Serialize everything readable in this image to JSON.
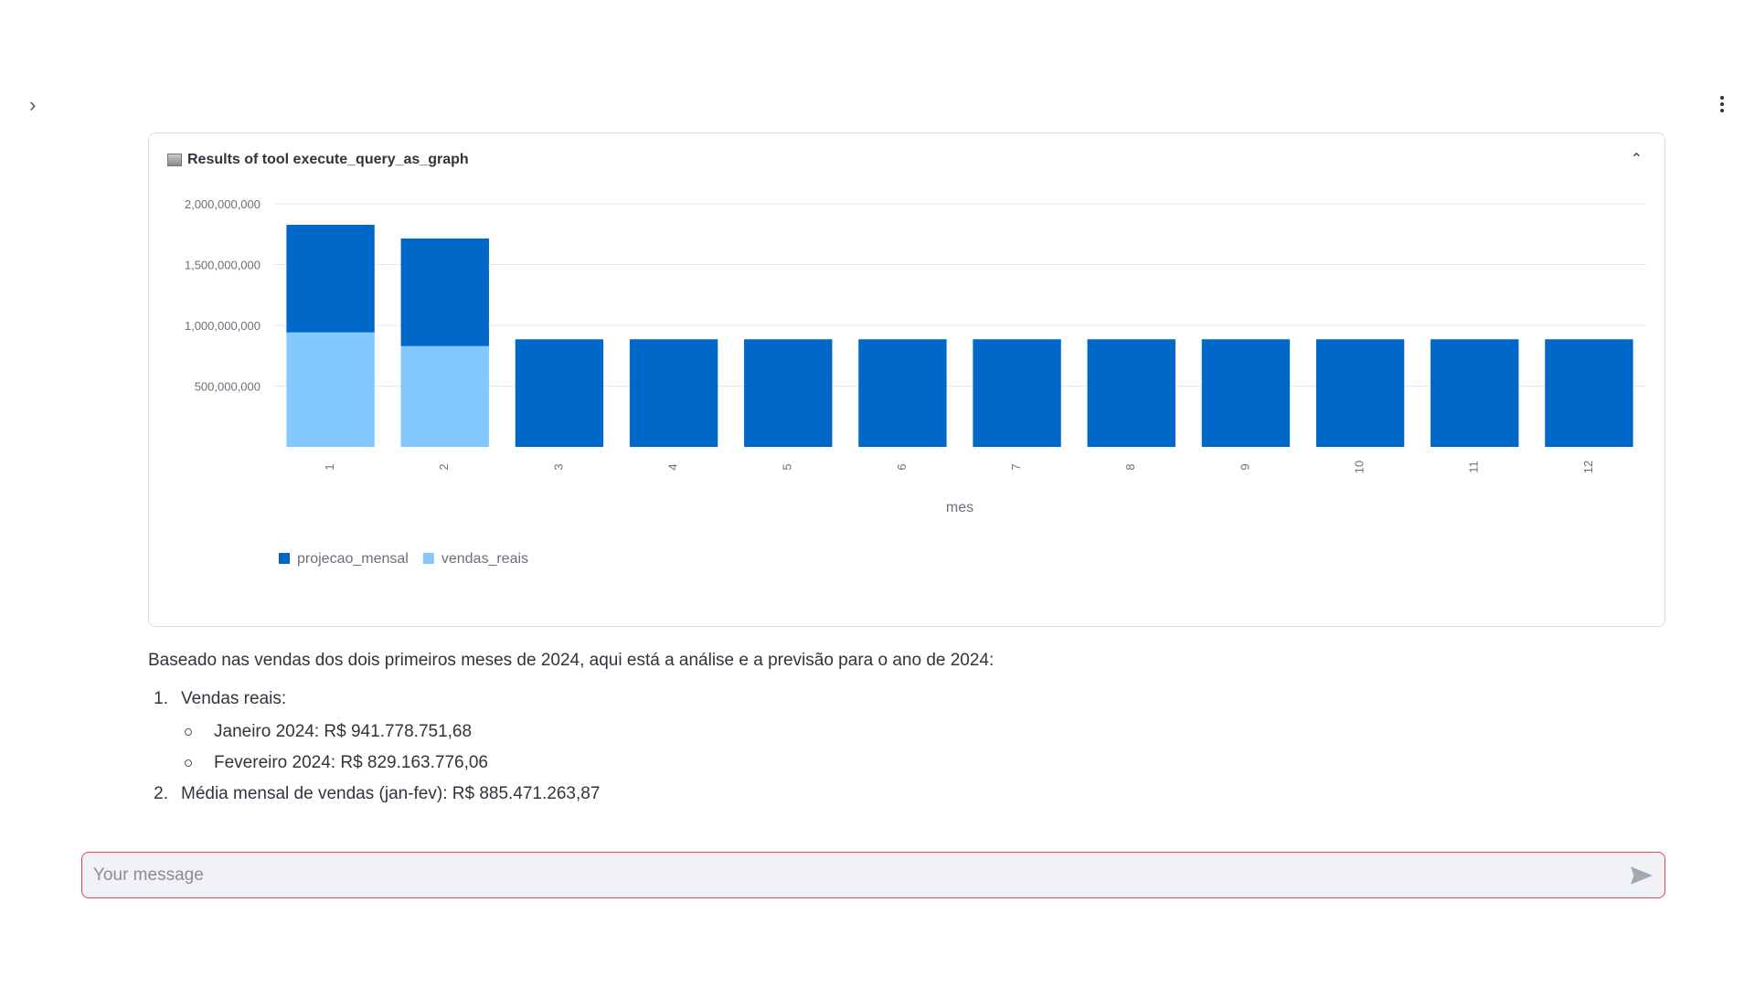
{
  "card": {
    "title": "Results of tool execute_query_as_graph"
  },
  "chart_data": {
    "type": "bar",
    "stacked": true,
    "categories": [
      "1",
      "2",
      "3",
      "4",
      "5",
      "6",
      "7",
      "8",
      "9",
      "10",
      "11",
      "12"
    ],
    "xlabel": "mes",
    "ylabel": "",
    "ylim": [
      0,
      2000000000
    ],
    "yticks": [
      "500,000,000",
      "1,000,000,000",
      "1,500,000,000",
      "2,000,000,000"
    ],
    "grid": true,
    "legend": "bottom-left",
    "series": [
      {
        "name": "vendas_reais",
        "color": "#83c9ff",
        "values": [
          941778751.68,
          829163776.06,
          0,
          0,
          0,
          0,
          0,
          0,
          0,
          0,
          0,
          0
        ]
      },
      {
        "name": "projecao_mensal",
        "color": "#0068c9",
        "values": [
          885471263.87,
          885471263.87,
          885471263.87,
          885471263.87,
          885471263.87,
          885471263.87,
          885471263.87,
          885471263.87,
          885471263.87,
          885471263.87,
          885471263.87,
          885471263.87
        ]
      }
    ]
  },
  "message": {
    "intro": "Baseado nas vendas dos dois primeiros meses de 2024, aqui está a análise e a previsão para o ano de 2024:",
    "items": [
      {
        "num": "1.",
        "text": "Vendas reais:",
        "sub": [
          "Janeiro 2024: R$ 941.778.751,68",
          "Fevereiro 2024: R$ 829.163.776,06"
        ]
      },
      {
        "num": "2.",
        "text": "Média mensal de vendas (jan-fev): R$ 885.471.263,87"
      }
    ]
  },
  "input": {
    "placeholder": "Your message"
  }
}
